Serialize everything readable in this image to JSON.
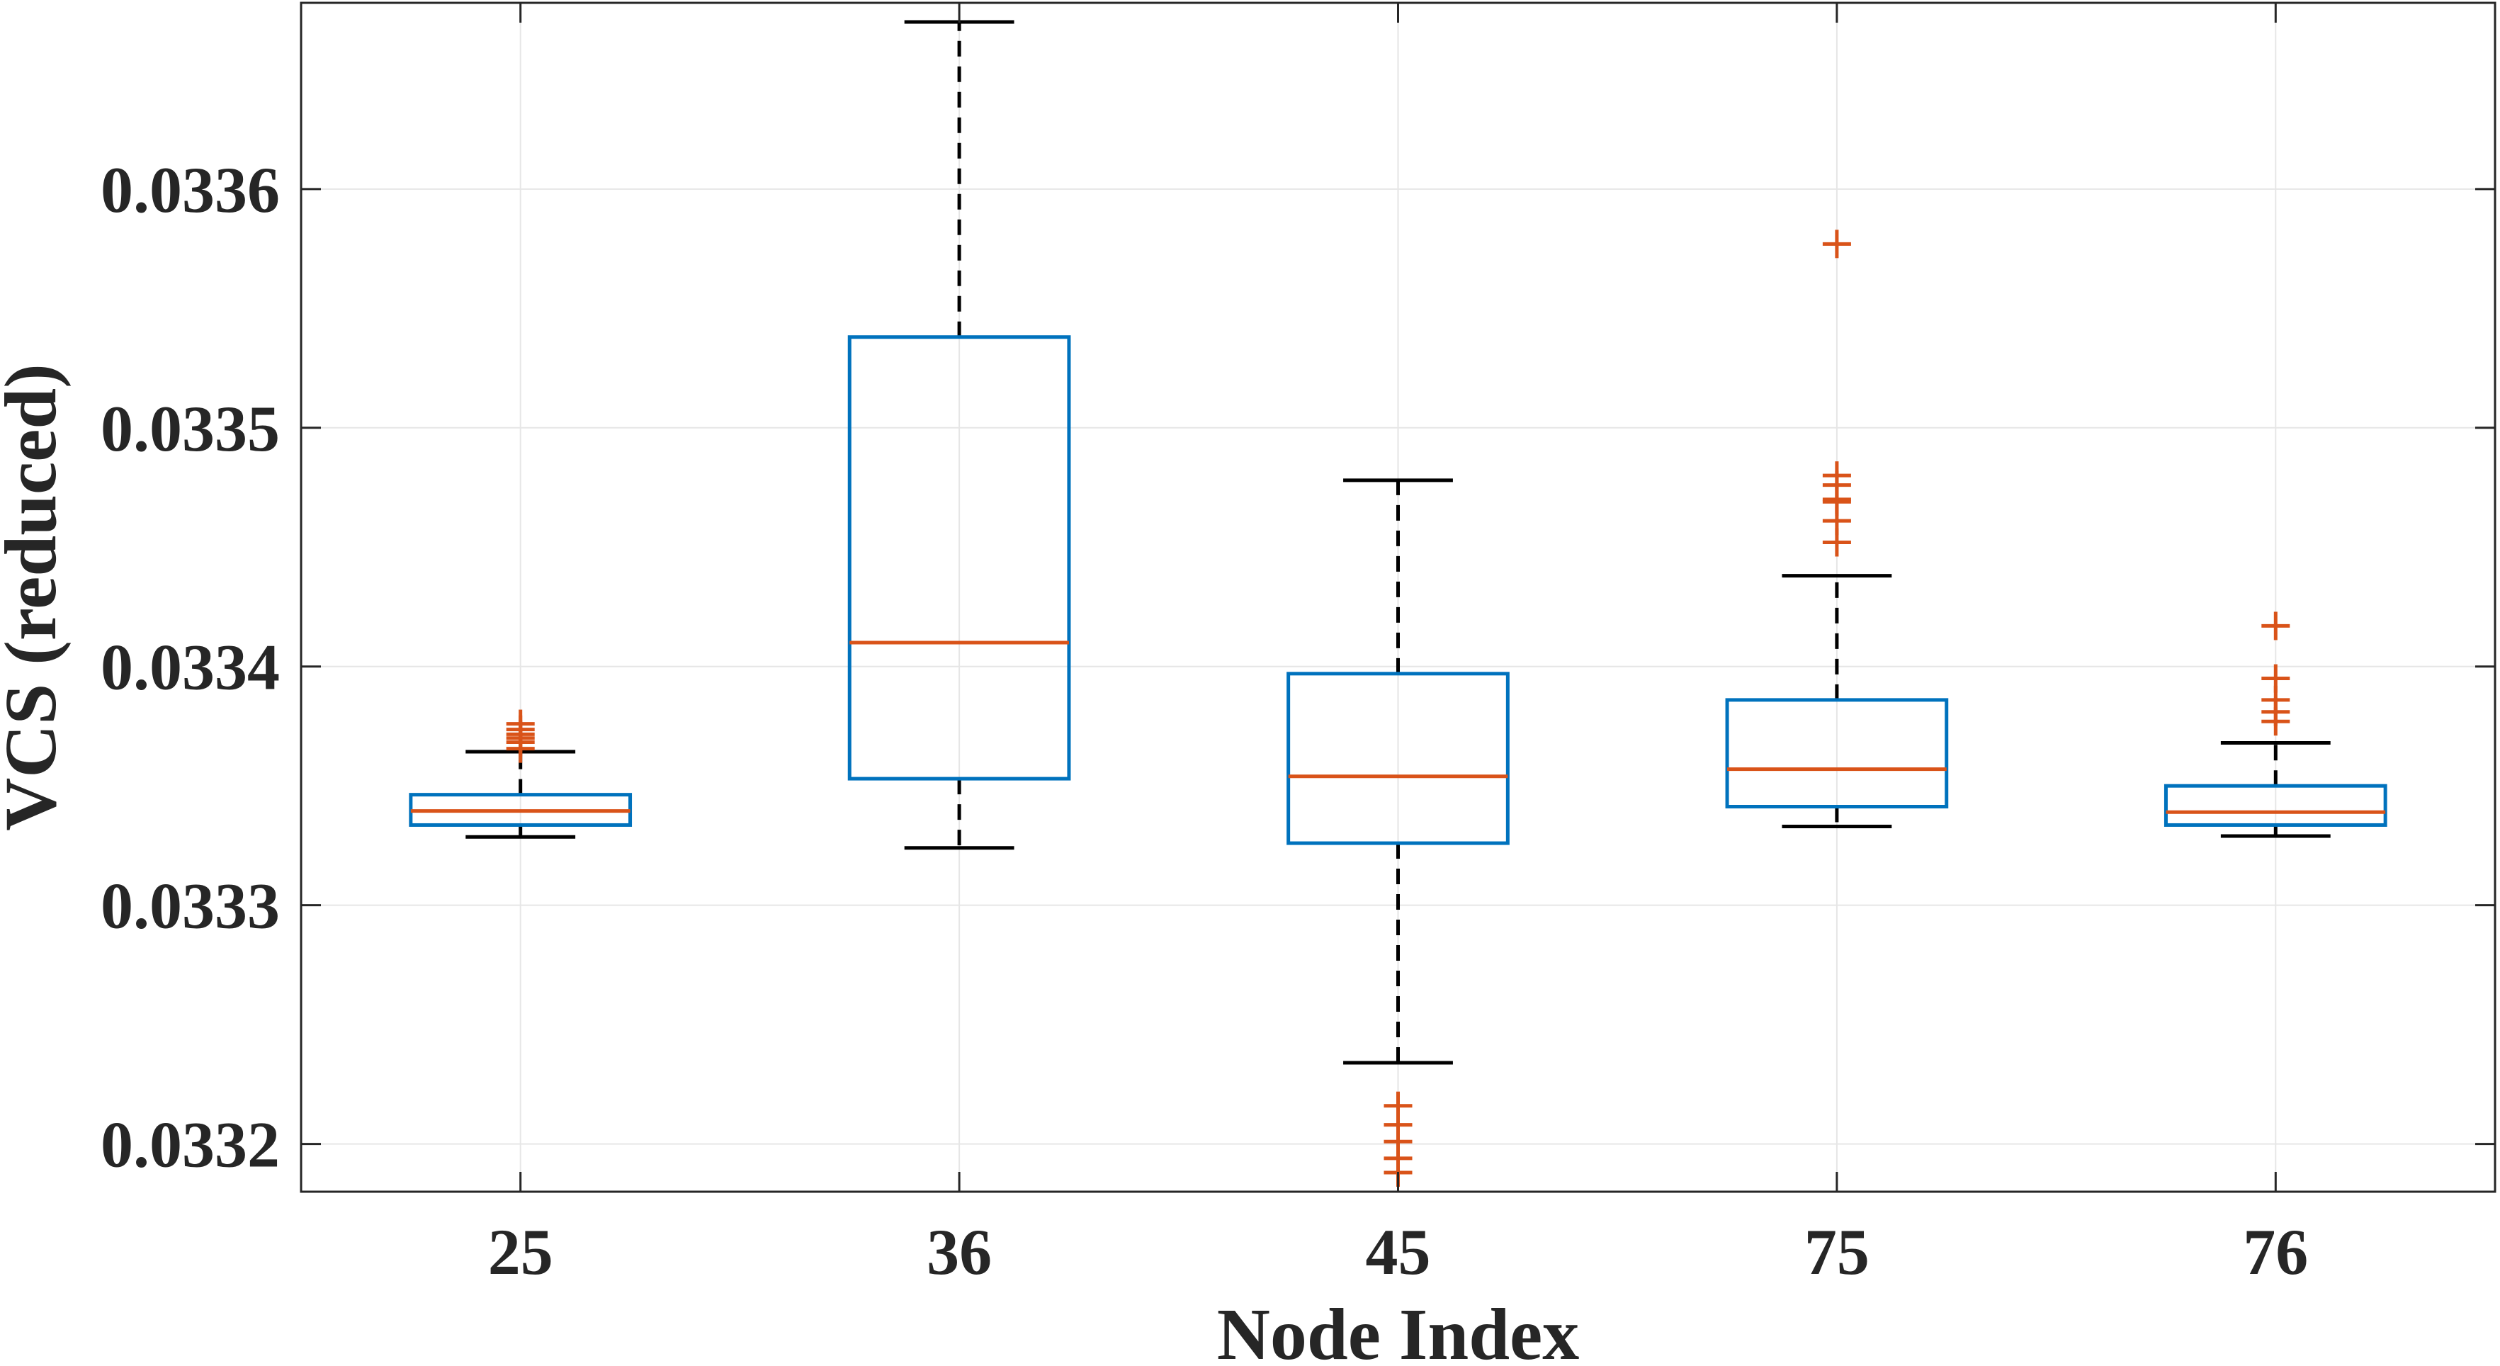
{
  "chart_data": {
    "type": "boxplot",
    "title": "",
    "xlabel": "Node Index",
    "ylabel": "VCS (reduced)",
    "ylim": [
      0.03318,
      0.033678
    ],
    "yticks": [
      0.0332,
      0.0333,
      0.0334,
      0.0335,
      0.0336
    ],
    "ytick_labels": [
      "0.0332",
      "0.0333",
      "0.0334",
      "0.0335",
      "0.0336"
    ],
    "grid": true,
    "categories": [
      "25",
      "36",
      "45",
      "75",
      "76"
    ],
    "boxes": [
      {
        "category": "25",
        "whisker_low": 0.0333286,
        "q1": 0.0333336,
        "median": 0.0333395,
        "q3": 0.0333463,
        "whisker_high": 0.0333643,
        "outliers": [
          0.0333656,
          0.0333683,
          0.03337,
          0.0333716,
          0.0333736,
          0.033376
        ]
      },
      {
        "category": "36",
        "whisker_low": 0.033324,
        "q1": 0.033353,
        "median": 0.03341,
        "q3": 0.033538,
        "whisker_high": 0.03367,
        "outliers": []
      },
      {
        "category": "45",
        "whisker_low": 0.033234,
        "q1": 0.033326,
        "median": 0.033354,
        "q3": 0.033397,
        "whisker_high": 0.033478,
        "outliers": [
          0.033216,
          0.033208,
          0.033201,
          0.033194,
          0.033188
        ]
      },
      {
        "category": "75",
        "whisker_low": 0.033333,
        "q1": 0.0333413,
        "median": 0.033357,
        "q3": 0.033386,
        "whisker_high": 0.033438,
        "outliers": [
          0.033452,
          0.033461,
          0.033469,
          0.03347,
          0.033476,
          0.03348,
          0.033577
        ]
      },
      {
        "category": "76",
        "whisker_low": 0.033329,
        "q1": 0.0333336,
        "median": 0.033339,
        "q3": 0.03335,
        "whisker_high": 0.033368,
        "outliers": [
          0.033377,
          0.033381,
          0.033386,
          0.033395,
          0.033417
        ]
      }
    ],
    "colors": {
      "box": "#0072BD",
      "median": "#D95319",
      "whisker": "#000000",
      "outlier": "#D95319",
      "grid": "#e6e6e6",
      "axis": "#262626"
    }
  }
}
